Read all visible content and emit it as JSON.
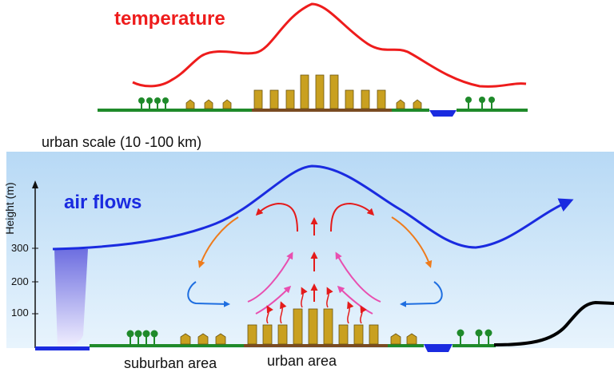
{
  "labels": {
    "temperature": "temperature",
    "scale": "urban scale (10 -100 km)",
    "air_flows": "air flows",
    "height_axis": "Height (m)",
    "tick_300": "300",
    "tick_200": "200",
    "tick_100": "100",
    "suburban_area": "suburban area",
    "urban_area": "urban area"
  },
  "colors": {
    "temperature_curve": "#ee1c1c",
    "air_flow_curve": "#1a2be0",
    "ground_green": "#1f8a2a",
    "urban_ground": "#7a4b22",
    "building": "#c9a020",
    "water": "#1a2be0",
    "sky": "#cfe6f8"
  },
  "icons": [
    "tree-icon",
    "house-icon",
    "building-icon",
    "arrow-icon"
  ]
}
